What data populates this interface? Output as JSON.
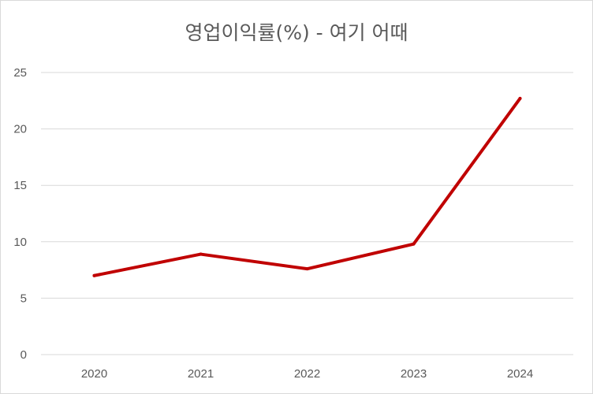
{
  "chart_data": {
    "type": "line",
    "title": "영업이익률(%) - 여기 어때",
    "categories": [
      "2020",
      "2021",
      "2022",
      "2023",
      "2024"
    ],
    "series": [
      {
        "values": [
          7.0,
          8.9,
          7.6,
          9.8,
          22.7
        ],
        "color": "#c00000"
      }
    ],
    "yticks": [
      0,
      5,
      10,
      15,
      20,
      25
    ],
    "ylim": [
      0,
      25
    ],
    "grid": true,
    "legend": "none",
    "colors": {
      "line": "#c00000",
      "grid": "#d9d9d9",
      "text": "#595959"
    }
  }
}
